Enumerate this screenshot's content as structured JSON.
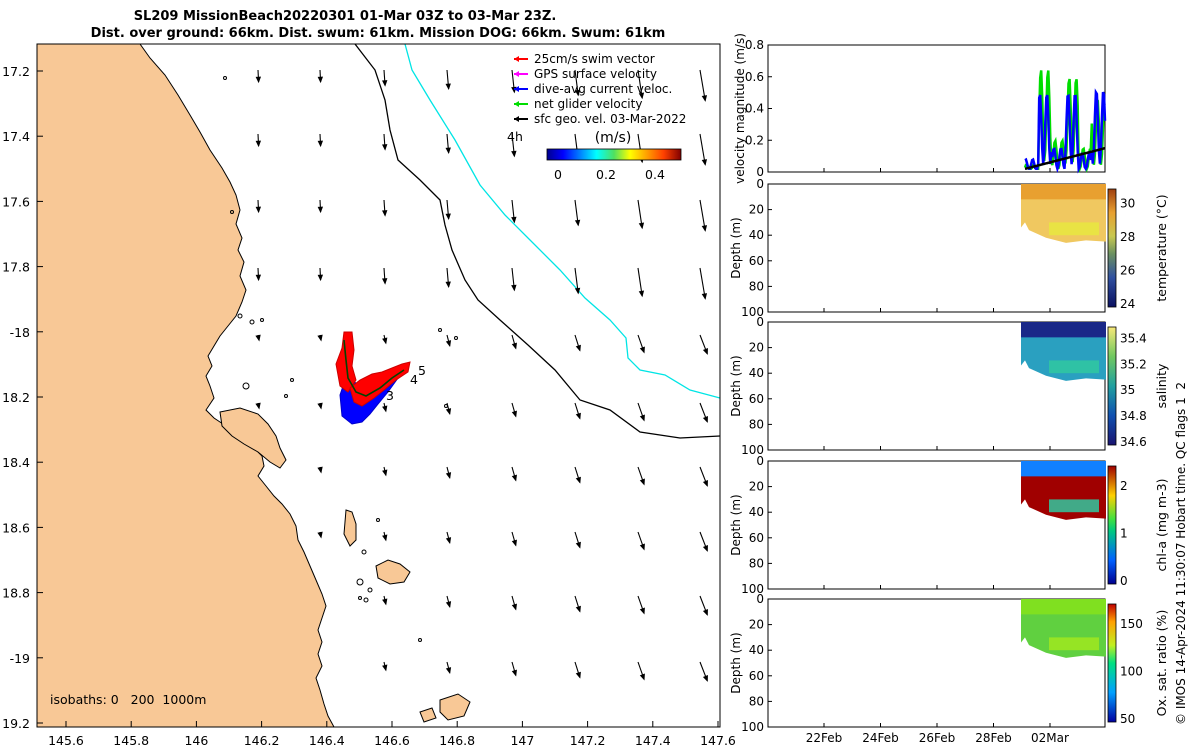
{
  "title": {
    "line1": "SL209 MissionBeach20220301 01-Mar 03Z to 03-Mar 23Z.",
    "line2": "Dist. over ground: 66km. Dist. swum: 61km. Mission DOG: 66km. Swum: 61km"
  },
  "colors": {
    "land": "#f8c896",
    "swim_vector": "#ff0000",
    "gps_velocity": "#ff00ff",
    "dive_current": "#0000ff",
    "net_velocity": "#00dd00",
    "geo_velocity": "#000000",
    "isobath_200": "#000000",
    "isobath_1000": "#00e5e5"
  },
  "map": {
    "lon_ticks": [
      "145.6",
      "145.8",
      "146",
      "146.2",
      "146.4",
      "146.6",
      "146.8",
      "147",
      "147.2",
      "147.4",
      "147.6"
    ],
    "lat_ticks": [
      "17.2",
      "17.4",
      "17.6",
      "17.8",
      "-18",
      "18.2",
      "18.4",
      "18.6",
      "18.8",
      "-19",
      "19.2"
    ],
    "legend": [
      {
        "label": "25cm/s swim vector",
        "color": "#ff0000"
      },
      {
        "label": "GPS surface velocity",
        "color": "#ff00ff"
      },
      {
        "label": "dive-avg current veloc.",
        "color": "#0000ff"
      },
      {
        "label": "net glider velocity",
        "color": "#00dd00"
      },
      {
        "label": "sfc geo. vel. 03-Mar-2022",
        "color": "#000000"
      }
    ],
    "colorbar": {
      "unit": "(m/s)",
      "ticks": [
        "0",
        "0.2",
        "0.4"
      ]
    },
    "isobaths_text": "isobaths: 0   200  1000m",
    "track_labels": [
      "4h",
      "3",
      "4",
      "5"
    ]
  },
  "chart_data": [
    {
      "type": "line",
      "ylabel": "velocity magnitude (m/s)",
      "ylim": [
        0,
        0.8
      ],
      "yticks": [
        "0",
        "0.2",
        "0.4",
        "0.6",
        "0.8"
      ],
      "series": [
        {
          "color": "#00dd00",
          "x": [
            "01-Mar",
            "01-Mar",
            "02-Mar",
            "02-Mar",
            "03-Mar",
            "03-Mar"
          ],
          "values": [
            0.05,
            0.65,
            0.2,
            0.6,
            0.15,
            0.45
          ]
        },
        {
          "color": "#0000ff",
          "x": [
            "01-Mar",
            "01-Mar",
            "02-Mar",
            "02-Mar",
            "03-Mar",
            "03-Mar"
          ],
          "values": [
            0.08,
            0.5,
            0.15,
            0.5,
            0.12,
            0.52
          ]
        },
        {
          "color": "#000000",
          "x": [
            "01-Mar",
            "02-Mar",
            "03-Mar"
          ],
          "values": [
            0.02,
            0.1,
            0.15
          ]
        }
      ]
    },
    {
      "type": "heatmap",
      "ylabel": "Depth (m)",
      "colorbar_label": "temperature (°C)",
      "ylim": [
        0,
        100
      ],
      "yticks": [
        "0",
        "20",
        "40",
        "60",
        "80",
        "100"
      ],
      "cticks": [
        "24",
        "26",
        "28",
        "30"
      ]
    },
    {
      "type": "heatmap",
      "ylabel": "Depth (m)",
      "colorbar_label": "salinity",
      "ylim": [
        0,
        100
      ],
      "yticks": [
        "0",
        "20",
        "40",
        "60",
        "80",
        "100"
      ],
      "cticks": [
        "34.6",
        "34.8",
        "35",
        "35.2",
        "35.4"
      ]
    },
    {
      "type": "heatmap",
      "ylabel": "Depth (m)",
      "colorbar_label": "chl-a (mg m-3)",
      "ylim": [
        0,
        100
      ],
      "yticks": [
        "0",
        "20",
        "40",
        "60",
        "80",
        "100"
      ],
      "cticks": [
        "0",
        "1",
        "2"
      ]
    },
    {
      "type": "heatmap",
      "ylabel": "Depth (m)",
      "colorbar_label": "Ox. sat. ratio (%)",
      "ylim": [
        0,
        100
      ],
      "yticks": [
        "0",
        "20",
        "40",
        "60",
        "80",
        "100"
      ],
      "cticks": [
        "50",
        "100",
        "150"
      ]
    }
  ],
  "time_axis": {
    "ticks": [
      "22Feb",
      "24Feb",
      "26Feb",
      "28Feb",
      "02Mar"
    ]
  },
  "credit": "© IMOS 14-Apr-2024 11:30:07 Hobart time. QC flags 1  2"
}
